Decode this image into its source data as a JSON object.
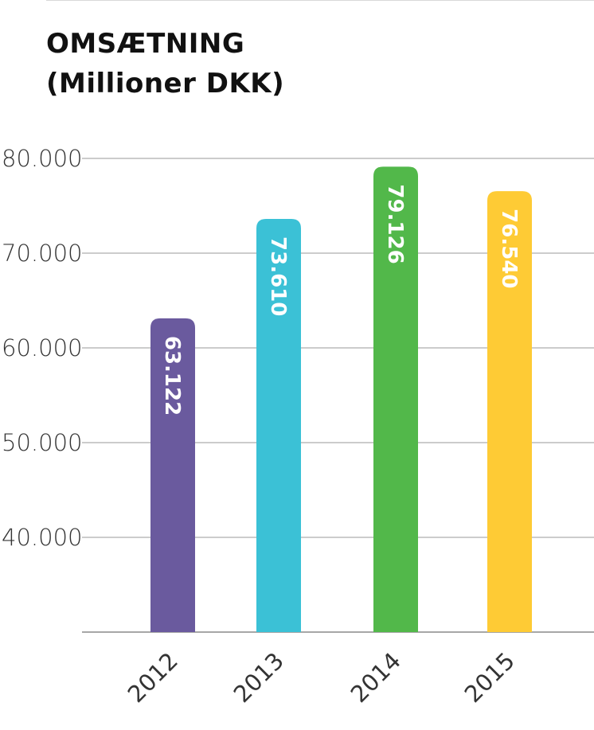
{
  "chart_data": {
    "type": "bar",
    "title_line1": "OMSÆTNING",
    "title_line2": "(Millioner DKK)",
    "categories": [
      "2012",
      "2013",
      "2014",
      "2015"
    ],
    "values": [
      63122,
      73610,
      79126,
      76540
    ],
    "value_labels": [
      "63.122",
      "73.610",
      "79.126",
      "76.540"
    ],
    "colors": [
      "#6a5a9e",
      "#3bc1d6",
      "#52b84a",
      "#fecb35"
    ],
    "ylim": [
      30000,
      80000
    ],
    "yticks": [
      40000,
      50000,
      60000,
      70000,
      80000
    ],
    "ytick_labels": [
      "40.000",
      "50.000",
      "60.000",
      "70.000",
      "80.000"
    ],
    "grid": true,
    "xlabel": "",
    "ylabel": ""
  }
}
